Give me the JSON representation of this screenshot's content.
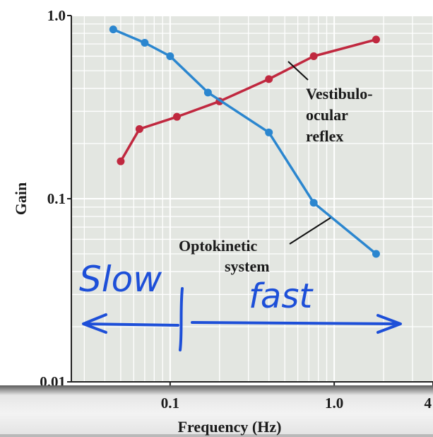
{
  "chart_data": {
    "type": "line",
    "xlabel": "Frequency (Hz)",
    "ylabel": "Gain",
    "x_scale": "log",
    "y_scale": "log",
    "xlim": [
      0.025,
      4
    ],
    "ylim": [
      0.01,
      1.0
    ],
    "x_tick_labels": [
      "0.1",
      "1.0",
      "4"
    ],
    "x_ticks": [
      0.1,
      1.0,
      4
    ],
    "y_tick_labels": [
      "0.01",
      "0.1",
      "1.0"
    ],
    "y_ticks": [
      0.01,
      0.1,
      1.0
    ],
    "grid": true,
    "series": [
      {
        "name": "Vestibulo-ocular reflex",
        "color": "#c0283f",
        "x": [
          0.05,
          0.065,
          0.11,
          0.2,
          0.4,
          0.75,
          1.8
        ],
        "y": [
          0.16,
          0.24,
          0.28,
          0.34,
          0.45,
          0.6,
          0.74
        ]
      },
      {
        "name": "Optokinetic system",
        "color": "#2b86cf",
        "x": [
          0.045,
          0.07,
          0.1,
          0.17,
          0.4,
          0.75,
          1.8
        ],
        "y": [
          0.84,
          0.71,
          0.6,
          0.38,
          0.23,
          0.095,
          0.05
        ]
      }
    ],
    "annotations": [
      {
        "text_lines": [
          "Vestibulo-",
          "ocular",
          "reflex"
        ],
        "target": "Vestibulo-ocular reflex"
      },
      {
        "text_lines": [
          "Optokinetic",
          "system"
        ],
        "target": "Optokinetic system"
      }
    ],
    "handwriting": {
      "left_word": "Slow",
      "right_word": "fast",
      "ink_color": "#1d4fd8"
    }
  }
}
